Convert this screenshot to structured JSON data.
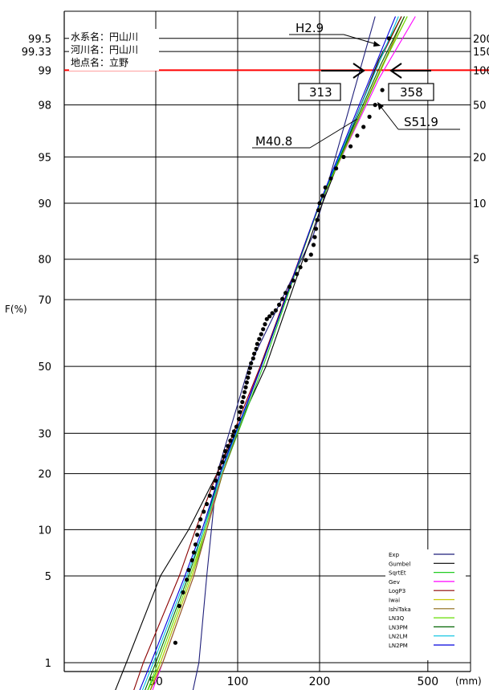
{
  "chart_data": {
    "type": "probability-plot",
    "ylabel": "F(%)",
    "xunit": "(mm)",
    "x_scale": "log",
    "y_scale": "normal-probability",
    "x_ticks": [
      "50",
      "100",
      "200",
      "500"
    ],
    "y_ticks": [
      "1",
      "5",
      "10",
      "20",
      "30",
      "50",
      "70",
      "80",
      "90",
      "95",
      "98",
      "99",
      "99.33",
      "99.5"
    ],
    "return_periods": [
      "200",
      "150",
      "100",
      "50",
      "20",
      "10",
      "5"
    ],
    "grid": true,
    "info": {
      "line1": "水系名：円山川",
      "line2": "河川名：円山川",
      "line3": "地点名：立野"
    },
    "annotations": {
      "h": "H2.9",
      "m": "M40.8",
      "s": "S51.9",
      "box_low": "313",
      "box_high": "358"
    },
    "reference_line": {
      "F": 99,
      "color": "#ff0000"
    },
    "legend_position": "bottom-right",
    "series": [
      {
        "name": "Exp",
        "color": "#1f1f7a",
        "points": [
          [
            68,
            0.5
          ],
          [
            72,
            1
          ],
          [
            77,
            5
          ],
          [
            84,
            20
          ],
          [
            110,
            50
          ],
          [
            190,
            85
          ],
          [
            320,
            99.7
          ]
        ]
      },
      {
        "name": "Gumbel",
        "color": "#000000",
        "points": [
          [
            35,
            0.5
          ],
          [
            39,
            1
          ],
          [
            52,
            5
          ],
          [
            66,
            10
          ],
          [
            84,
            20
          ],
          [
            127,
            50
          ],
          [
            205,
            90
          ],
          [
            330,
            99.2
          ],
          [
            400,
            99.7
          ]
        ]
      },
      {
        "name": "SqrtEt",
        "color": "#22cc22",
        "points": [
          [
            46,
            0.5
          ],
          [
            52,
            1
          ],
          [
            68,
            5
          ],
          [
            77,
            10
          ],
          [
            88,
            20
          ],
          [
            124,
            50
          ],
          [
            200,
            90
          ],
          [
            350,
            99.4
          ],
          [
            400,
            99.7
          ]
        ]
      },
      {
        "name": "Gev",
        "color": "#ff00ff",
        "points": [
          [
            48,
            0.5
          ],
          [
            53,
            1
          ],
          [
            69,
            5
          ],
          [
            77,
            10
          ],
          [
            87,
            20
          ],
          [
            121,
            50
          ],
          [
            200,
            90
          ],
          [
            330,
            98.8
          ],
          [
            450,
            99.7
          ]
        ]
      },
      {
        "name": "LogP3",
        "color": "#8b0000",
        "points": [
          [
            41,
            0.5
          ],
          [
            45,
            1
          ],
          [
            61,
            5
          ],
          [
            70,
            10
          ],
          [
            84,
            20
          ],
          [
            121,
            50
          ],
          [
            200,
            90
          ],
          [
            330,
            99.15
          ],
          [
            400,
            99.7
          ]
        ]
      },
      {
        "name": "Iwai",
        "color": "#c8c800",
        "points": [
          [
            47,
            0.5
          ],
          [
            52,
            1
          ],
          [
            68,
            5
          ],
          [
            76,
            10
          ],
          [
            87,
            20
          ],
          [
            122,
            50
          ],
          [
            201,
            90
          ],
          [
            340,
            99.1
          ],
          [
            420,
            99.7
          ]
        ]
      },
      {
        "name": "IshiTaka",
        "color": "#8b6914",
        "points": [
          [
            47,
            0.5
          ],
          [
            53,
            1
          ],
          [
            69,
            5
          ],
          [
            77,
            10
          ],
          [
            88,
            20
          ],
          [
            122,
            50
          ],
          [
            200,
            90
          ],
          [
            345,
            99.15
          ],
          [
            410,
            99.7
          ]
        ]
      },
      {
        "name": "LN3Q",
        "color": "#66dd00",
        "points": [
          [
            46,
            0.5
          ],
          [
            51,
            1
          ],
          [
            67,
            5
          ],
          [
            76,
            10
          ],
          [
            87,
            20
          ],
          [
            122,
            50
          ],
          [
            201,
            90
          ],
          [
            350,
            99.2
          ],
          [
            420,
            99.7
          ]
        ]
      },
      {
        "name": "LN3PM",
        "color": "#006400",
        "points": [
          [
            45,
            0.5
          ],
          [
            50,
            1
          ],
          [
            66,
            5
          ],
          [
            75,
            10
          ],
          [
            86,
            20
          ],
          [
            122,
            50
          ],
          [
            200,
            90
          ],
          [
            335,
            99.1
          ],
          [
            410,
            99.7
          ]
        ]
      },
      {
        "name": "LN2LM",
        "color": "#00c0e0",
        "points": [
          [
            44,
            0.5
          ],
          [
            49,
            1
          ],
          [
            65,
            5
          ],
          [
            75,
            10
          ],
          [
            87,
            20
          ],
          [
            122,
            50
          ],
          [
            200,
            90
          ],
          [
            325,
            99.05
          ],
          [
            390,
            99.7
          ]
        ]
      },
      {
        "name": "LN2PM",
        "color": "#0000dd",
        "points": [
          [
            43,
            0.5
          ],
          [
            48,
            1
          ],
          [
            64,
            5
          ],
          [
            74,
            10
          ],
          [
            86,
            20
          ],
          [
            122,
            50
          ],
          [
            200,
            90
          ],
          [
            315,
            99.0
          ],
          [
            380,
            99.7
          ]
        ]
      }
    ],
    "observed": [
      [
        59,
        1.5
      ],
      [
        61,
        3
      ],
      [
        63,
        3.8
      ],
      [
        65,
        4.7
      ],
      [
        66,
        5.5
      ],
      [
        68,
        6.4
      ],
      [
        69,
        7.2
      ],
      [
        70,
        8.1
      ],
      [
        71,
        9.3
      ],
      [
        72,
        10.4
      ],
      [
        73,
        11.5
      ],
      [
        75,
        12.7
      ],
      [
        77,
        14
      ],
      [
        79,
        15.5
      ],
      [
        81,
        17
      ],
      [
        83,
        18.5
      ],
      [
        85,
        20
      ],
      [
        86,
        21.3
      ],
      [
        88,
        22.6
      ],
      [
        89,
        24
      ],
      [
        90,
        25.3
      ],
      [
        92,
        26.6
      ],
      [
        94,
        28
      ],
      [
        96,
        29.3
      ],
      [
        97,
        30.5
      ],
      [
        99,
        31.8
      ],
      [
        101,
        34
      ],
      [
        102,
        36
      ],
      [
        103,
        37.5
      ],
      [
        104,
        39
      ],
      [
        105,
        40.5
      ],
      [
        106,
        42
      ],
      [
        107,
        43.5
      ],
      [
        108,
        45
      ],
      [
        109,
        46.5
      ],
      [
        110,
        48
      ],
      [
        111,
        49.5
      ],
      [
        112,
        51
      ],
      [
        114,
        52.5
      ],
      [
        115,
        54
      ],
      [
        117,
        55.5
      ],
      [
        118,
        57
      ],
      [
        120,
        58.5
      ],
      [
        122,
        60
      ],
      [
        124,
        61.5
      ],
      [
        126,
        63
      ],
      [
        128,
        64.5
      ],
      [
        131,
        65.3
      ],
      [
        134,
        66.2
      ],
      [
        138,
        67
      ],
      [
        142,
        68.6
      ],
      [
        146,
        70.2
      ],
      [
        150,
        71.8
      ],
      [
        155,
        73.4
      ],
      [
        160,
        75
      ],
      [
        165,
        76.6
      ],
      [
        170,
        78.2
      ],
      [
        178,
        79.8
      ],
      [
        186,
        81
      ],
      [
        190,
        83
      ],
      [
        192,
        84.5
      ],
      [
        194,
        86
      ],
      [
        196,
        87.5
      ],
      [
        198,
        89
      ],
      [
        200,
        90
      ],
      [
        205,
        91
      ],
      [
        210,
        92
      ],
      [
        220,
        93
      ],
      [
        230,
        94
      ],
      [
        245,
        95
      ],
      [
        260,
        95.8
      ],
      [
        275,
        96.5
      ],
      [
        290,
        97
      ],
      [
        305,
        97.5
      ],
      [
        320,
        98
      ],
      [
        340,
        98.5
      ],
      [
        360,
        99.5
      ]
    ]
  }
}
